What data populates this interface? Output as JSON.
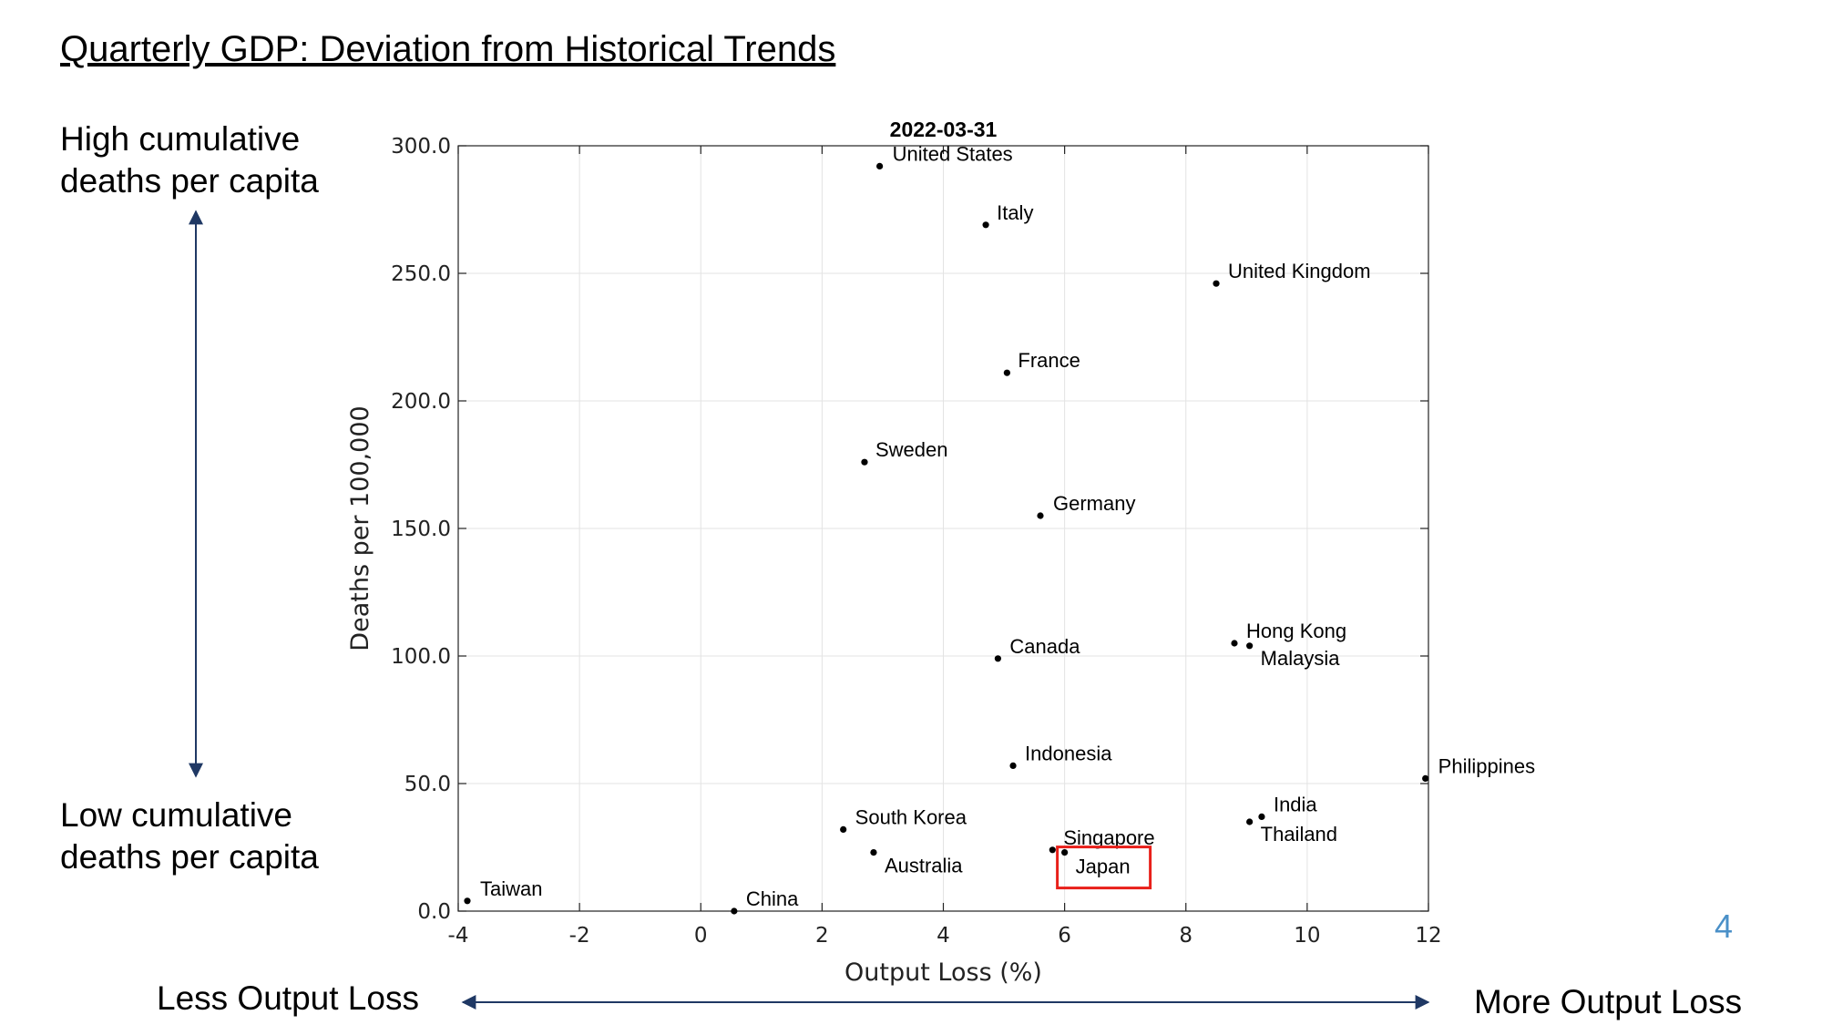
{
  "slide": {
    "title": "Quarterly GDP: Deviation from Historical Trends",
    "top_label": [
      "High cumulative",
      "deaths per capita"
    ],
    "bottom_label": [
      "Low cumulative",
      "deaths per capita"
    ],
    "less_output_loss": "Less Output Loss",
    "more_output_loss": "More Output Loss",
    "page_number": "4",
    "highlight_color": "#e8201a",
    "arrow_color": "#1f3864"
  },
  "chart_data": {
    "type": "scatter",
    "title": "2022-03-31",
    "xlabel": "Output Loss (%)",
    "ylabel": "Deaths per 100,000",
    "xlim": [
      -4,
      12
    ],
    "ylim": [
      0,
      300
    ],
    "xticks": [
      -4,
      -2,
      0,
      2,
      4,
      6,
      8,
      10,
      12
    ],
    "yticks": [
      0,
      50,
      100,
      150,
      200,
      250,
      300
    ],
    "ytick_labels": [
      "0.0",
      "50.0",
      "100.0",
      "150.0",
      "200.0",
      "250.0",
      "300.0"
    ],
    "grid": true,
    "highlighted": "Japan",
    "points": [
      {
        "name": "United States",
        "x": 2.95,
        "y": 292
      },
      {
        "name": "Italy",
        "x": 4.7,
        "y": 269
      },
      {
        "name": "United Kingdom",
        "x": 8.5,
        "y": 246
      },
      {
        "name": "France",
        "x": 5.05,
        "y": 211
      },
      {
        "name": "Sweden",
        "x": 2.7,
        "y": 176
      },
      {
        "name": "Germany",
        "x": 5.6,
        "y": 155
      },
      {
        "name": "Canada",
        "x": 4.9,
        "y": 99
      },
      {
        "name": "Hong Kong",
        "x": 8.8,
        "y": 105
      },
      {
        "name": "Malaysia",
        "x": 9.05,
        "y": 104
      },
      {
        "name": "Indonesia",
        "x": 5.15,
        "y": 57
      },
      {
        "name": "Philippines",
        "x": 11.95,
        "y": 52
      },
      {
        "name": "India",
        "x": 9.25,
        "y": 37
      },
      {
        "name": "Thailand",
        "x": 9.05,
        "y": 35
      },
      {
        "name": "South Korea",
        "x": 2.35,
        "y": 32
      },
      {
        "name": "Australia",
        "x": 2.85,
        "y": 23
      },
      {
        "name": "Singapore",
        "x": 5.8,
        "y": 24
      },
      {
        "name": "Japan",
        "x": 6.0,
        "y": 23
      },
      {
        "name": "Taiwan",
        "x": -3.85,
        "y": 4
      },
      {
        "name": "China",
        "x": 0.55,
        "y": 0
      }
    ]
  }
}
